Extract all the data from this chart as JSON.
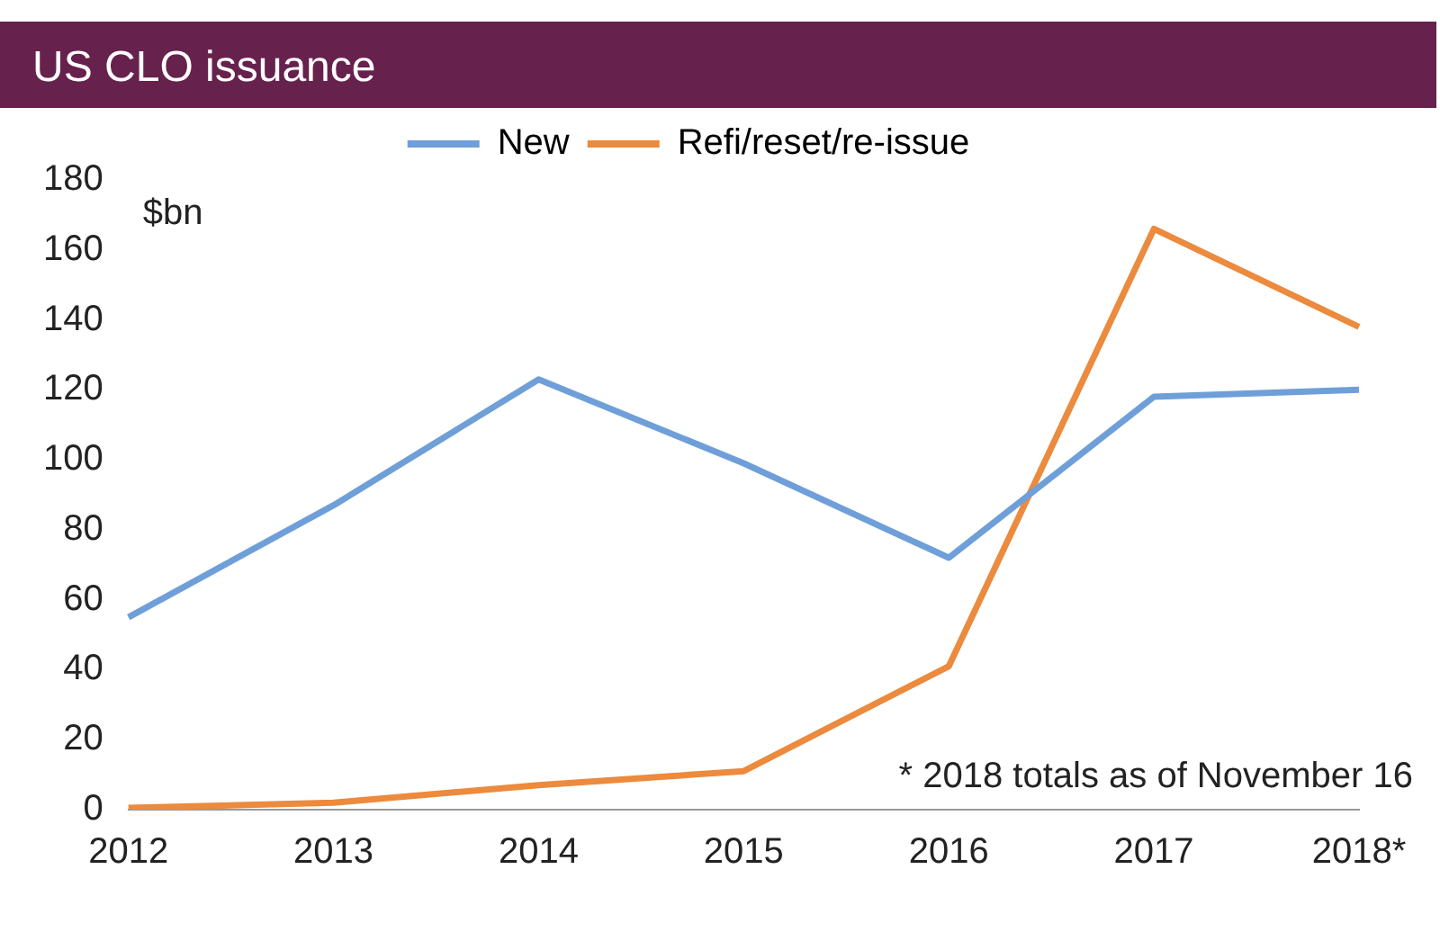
{
  "chart_data": {
    "type": "line",
    "title": "US CLO issuance",
    "ylabel": "$bn",
    "categories": [
      "2012",
      "2013",
      "2014",
      "2015",
      "2016",
      "2017",
      "2018*"
    ],
    "series": [
      {
        "name": "New",
        "color": "#6f9fd8",
        "values": [
          55,
          87,
          123,
          99,
          72,
          118,
          120
        ]
      },
      {
        "name": "Refi/reset/re-issue",
        "color": "#ec8a3d",
        "values": [
          0.5,
          2,
          7,
          11,
          41,
          166,
          138
        ]
      }
    ],
    "ylim": [
      0,
      180
    ],
    "yticks": [
      0,
      20,
      40,
      60,
      80,
      100,
      120,
      140,
      160,
      180
    ],
    "grid": false,
    "legend": "top",
    "marker": "none",
    "line_style": "solid",
    "annotations": [
      "* 2018 totals as of November 16"
    ]
  }
}
